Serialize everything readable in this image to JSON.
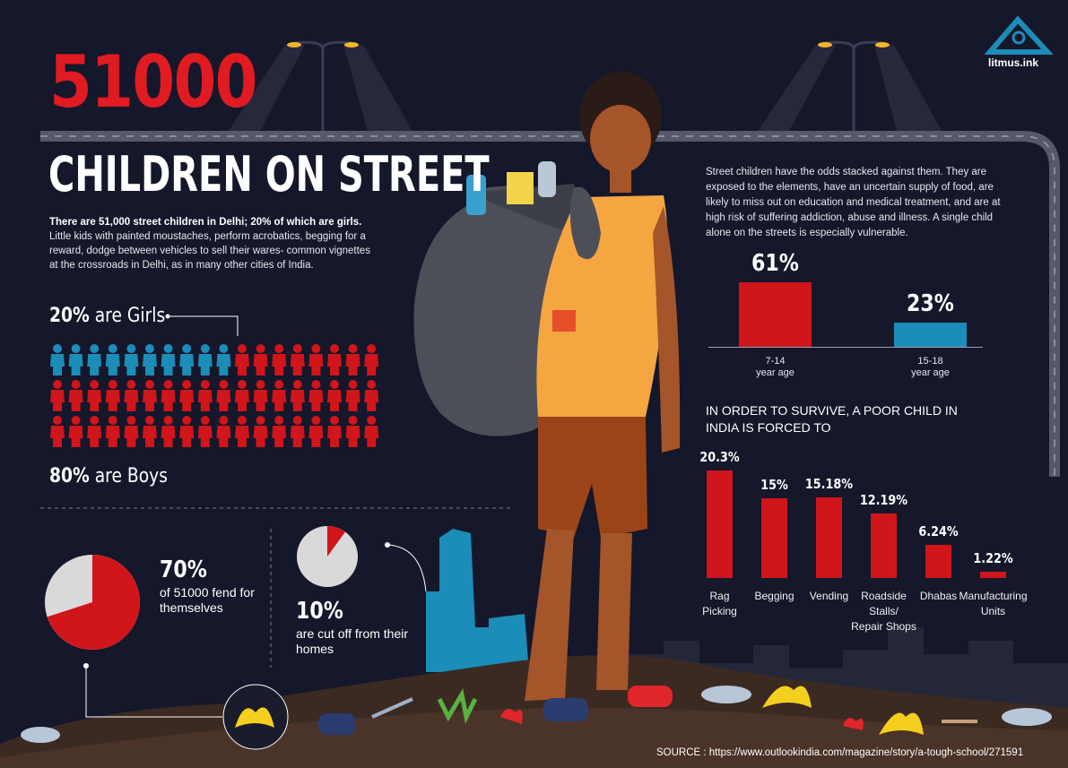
{
  "logo": {
    "text": "litmus.ink"
  },
  "headline": {
    "number": "51000",
    "title": "CHILDREN ON STREET"
  },
  "intro": {
    "bold": "There are 51,000 street children in Delhi; 20% of which are girls.",
    "body": "Little kids with painted moustaches, perform acrobatics, begging for a reward, dodge between vehicles to sell their wares- common vignettes at the crossroads in Delhi, as in many other cities of India."
  },
  "gender": {
    "girls_pct": "20%",
    "girls_text": "are Girls",
    "boys_pct": "80%",
    "boys_text": "are Boys",
    "girls_count": 10,
    "total_icons": 54,
    "girl_color": "#1c8cb8",
    "boy_color": "#d0151b"
  },
  "stat70": {
    "value": "70%",
    "text": "of 51000 fend for themselves",
    "fraction": 0.7
  },
  "stat10": {
    "value": "10%",
    "text": "are cut off from their homes",
    "fraction": 0.1
  },
  "right_text": "Street children have the odds stacked against them. They are exposed to the elements, have an uncertain supply of food, are likely to miss out on education and medical treatment, and are at high risk of suffering addiction, abuse and illness. A single child alone on the streets is especially vulnerable.",
  "colors": {
    "red": "#d0151b",
    "blue": "#1c8cb8",
    "background": "#15172a",
    "pie_grey": "#d9d9d9"
  },
  "chart_data": [
    {
      "type": "bar",
      "categories": [
        "7-14 year age",
        "15-18 year age"
      ],
      "values": [
        61,
        23
      ],
      "value_labels": [
        "61%",
        "23%"
      ],
      "category_labels": [
        [
          "7-14",
          "year age"
        ],
        [
          "15-18",
          "year age"
        ]
      ],
      "colors": [
        "#d0151b",
        "#1c8cb8"
      ]
    },
    {
      "type": "bar",
      "title": "IN ORDER TO SURVIVE, A POOR CHILD IN INDIA IS FORCED TO",
      "categories": [
        "Rag Picking",
        "Begging",
        "Vending",
        "Roadside Stalls/ Repair Shops",
        "Dhabas",
        "Manufacturing Units"
      ],
      "category_labels": [
        [
          "Rag",
          "Picking"
        ],
        [
          "Begging"
        ],
        [
          "Vending"
        ],
        [
          "Roadside",
          "Stalls/",
          "Repair Shops"
        ],
        [
          "Dhabas"
        ],
        [
          "Manufacturing",
          "Units"
        ]
      ],
      "values": [
        20.3,
        15,
        15.18,
        12.19,
        6.24,
        1.22
      ],
      "value_labels": [
        "20.3%",
        "15%",
        "15.18%",
        "12.19%",
        "6.24%",
        "1.22%"
      ],
      "color": "#d0151b"
    }
  ],
  "source": "SOURCE : https://www.outlookindia.com/magazine/story/a-tough-school/271591"
}
